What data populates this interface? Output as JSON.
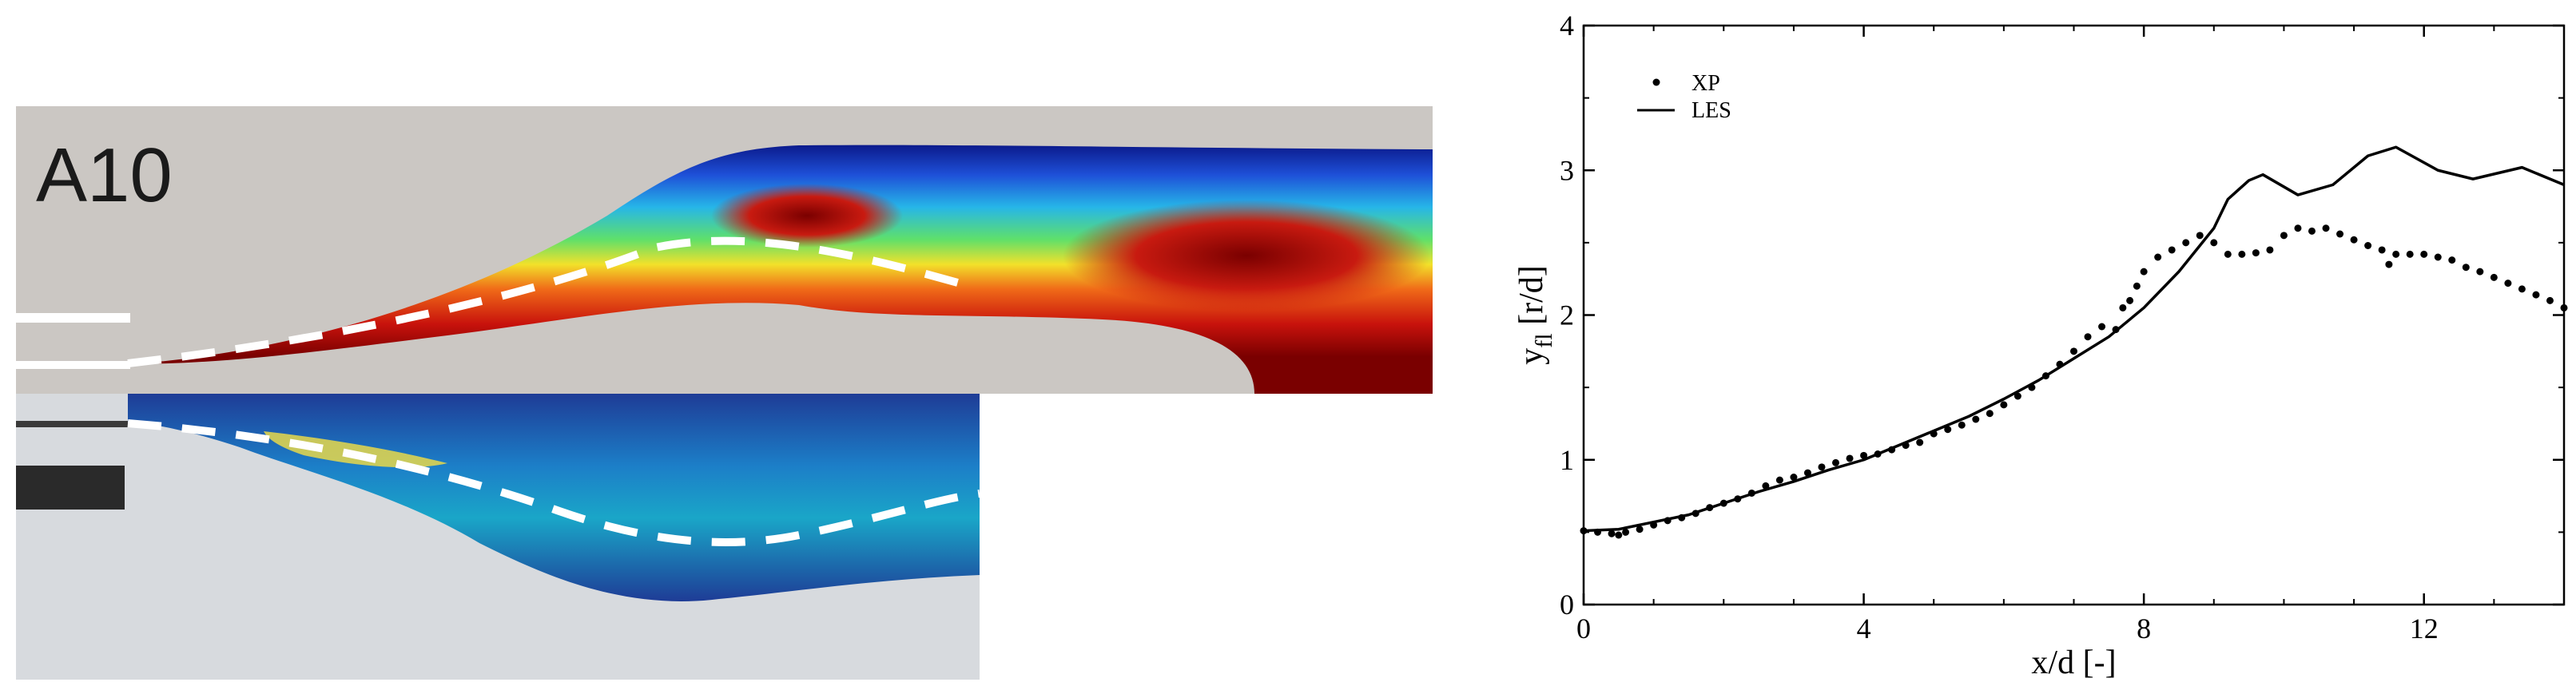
{
  "panel_label": "A10",
  "chart_data": {
    "type": "line",
    "xlabel": "x/d [-]",
    "ylabel_main": "y",
    "ylabel_sub": "fl",
    "ylabel_rest": " [r/d]",
    "xlim": [
      0,
      14
    ],
    "ylim": [
      0,
      4
    ],
    "xticks": [
      0,
      4,
      8,
      12
    ],
    "yticks": [
      0,
      1,
      2,
      3,
      4
    ],
    "grid": false,
    "legend_placement": "top-left",
    "series": [
      {
        "name": "XP",
        "style": "dots",
        "x": [
          0.0,
          0.2,
          0.4,
          0.5,
          0.6,
          0.8,
          1.0,
          1.2,
          1.4,
          1.6,
          1.8,
          2.0,
          2.2,
          2.4,
          2.6,
          2.8,
          3.0,
          3.2,
          3.4,
          3.6,
          3.8,
          4.0,
          4.2,
          4.4,
          4.6,
          4.8,
          5.0,
          5.2,
          5.4,
          5.6,
          5.8,
          6.0,
          6.2,
          6.4,
          6.6,
          6.8,
          7.0,
          7.2,
          7.4,
          7.6,
          7.7,
          7.8,
          7.9,
          8.0,
          8.2,
          8.4,
          8.6,
          8.8,
          9.0,
          9.2,
          9.4,
          9.6,
          9.8,
          10.0,
          10.2,
          10.4,
          10.6,
          10.8,
          11.0,
          11.2,
          11.4,
          11.5,
          11.6,
          11.8,
          12.0,
          12.2,
          12.4,
          12.6,
          12.8,
          13.0,
          13.2,
          13.4,
          13.6,
          13.8,
          14.0
        ],
        "y": [
          0.51,
          0.5,
          0.49,
          0.48,
          0.5,
          0.52,
          0.55,
          0.58,
          0.6,
          0.63,
          0.67,
          0.7,
          0.73,
          0.77,
          0.82,
          0.86,
          0.88,
          0.91,
          0.95,
          0.98,
          1.01,
          1.03,
          1.04,
          1.07,
          1.1,
          1.12,
          1.18,
          1.21,
          1.24,
          1.28,
          1.32,
          1.38,
          1.44,
          1.5,
          1.58,
          1.66,
          1.75,
          1.85,
          1.92,
          1.9,
          2.05,
          2.1,
          2.2,
          2.3,
          2.4,
          2.45,
          2.5,
          2.55,
          2.5,
          2.42,
          2.42,
          2.43,
          2.45,
          2.55,
          2.6,
          2.58,
          2.6,
          2.56,
          2.52,
          2.48,
          2.45,
          2.35,
          2.42,
          2.42,
          2.42,
          2.4,
          2.38,
          2.33,
          2.3,
          2.26,
          2.22,
          2.18,
          2.14,
          2.1,
          2.05
        ]
      },
      {
        "name": "LES",
        "style": "line",
        "x": [
          0.0,
          0.5,
          1.0,
          1.5,
          2.0,
          2.5,
          3.0,
          3.5,
          4.0,
          4.5,
          5.0,
          5.5,
          6.0,
          6.5,
          7.0,
          7.5,
          8.0,
          8.5,
          9.0,
          9.2,
          9.5,
          9.7,
          10.2,
          10.7,
          11.2,
          11.6,
          12.2,
          12.7,
          13.4,
          14.0
        ],
        "y": [
          0.51,
          0.52,
          0.57,
          0.62,
          0.7,
          0.78,
          0.85,
          0.93,
          1.0,
          1.1,
          1.2,
          1.3,
          1.42,
          1.55,
          1.7,
          1.85,
          2.05,
          2.3,
          2.6,
          2.8,
          2.93,
          2.97,
          2.83,
          2.9,
          3.1,
          3.16,
          3.0,
          2.94,
          3.02,
          2.9
        ]
      }
    ]
  }
}
